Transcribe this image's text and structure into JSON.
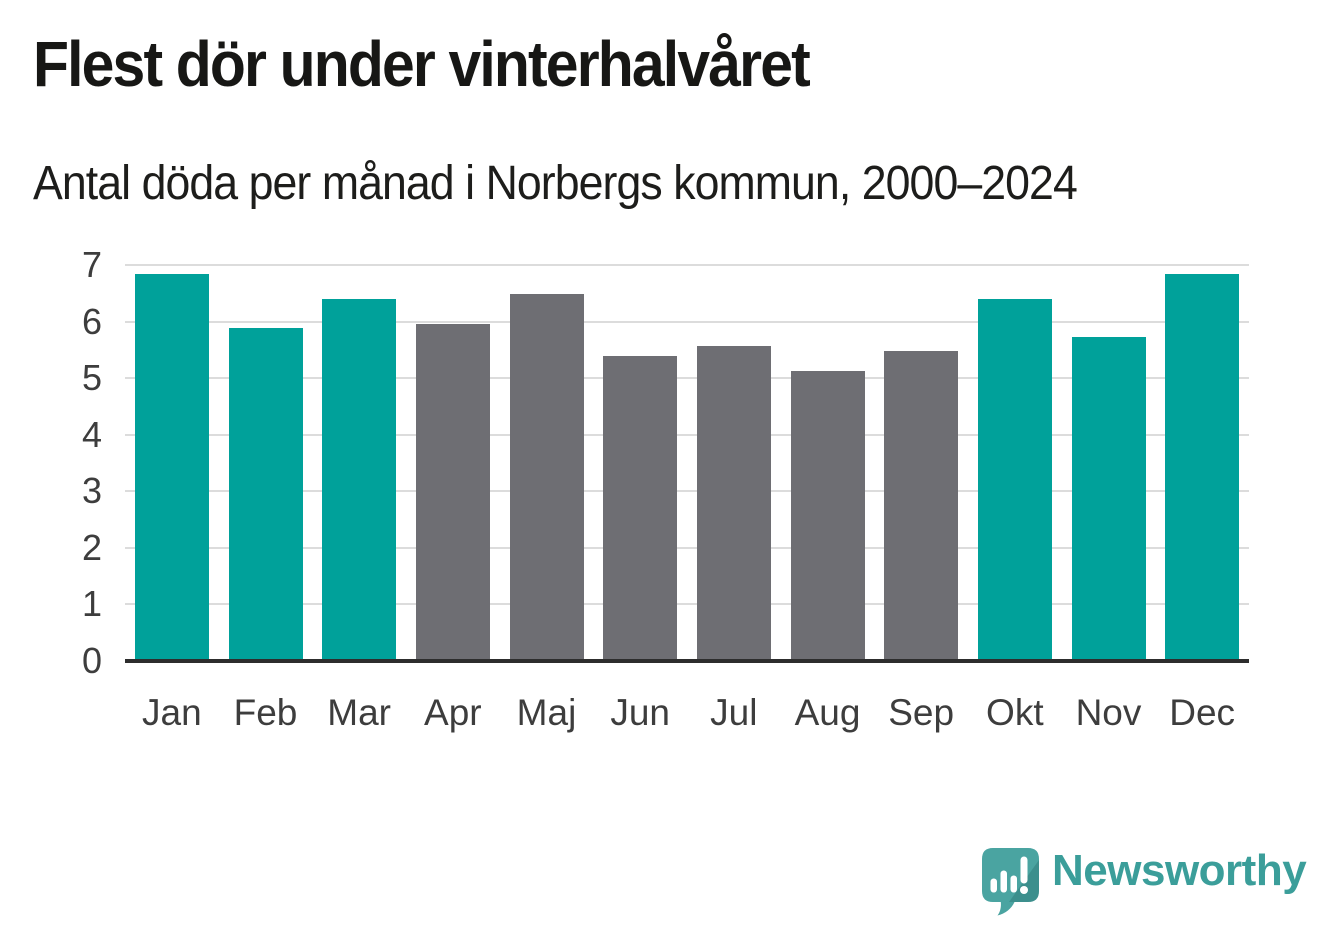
{
  "header": {
    "title": "Flest dör under vinterhalvåret",
    "subtitle": "Antal döda per månad i Norbergs kommun, 2000–2024"
  },
  "chart_data": {
    "type": "bar",
    "title": "Flest dör under vinterhalvåret",
    "subtitle": "Antal döda per månad i Norbergs kommun, 2000–2024",
    "categories": [
      "Jan",
      "Feb",
      "Mar",
      "Apr",
      "Maj",
      "Jun",
      "Jul",
      "Aug",
      "Sep",
      "Okt",
      "Nov",
      "Dec"
    ],
    "values": [
      6.84,
      5.88,
      6.4,
      5.96,
      6.48,
      5.4,
      5.56,
      5.12,
      5.48,
      6.4,
      5.72,
      6.84
    ],
    "bar_colors": [
      "#00a19a",
      "#00a19a",
      "#00a19a",
      "#6e6e73",
      "#6e6e73",
      "#6e6e73",
      "#6e6e73",
      "#6e6e73",
      "#6e6e73",
      "#00a19a",
      "#00a19a",
      "#00a19a"
    ],
    "xlabel": "",
    "ylabel": "",
    "ylim": [
      0,
      7
    ],
    "yticks": [
      0,
      1,
      2,
      3,
      4,
      5,
      6,
      7
    ],
    "grid": true,
    "legend": false
  },
  "colors": {
    "winter_bar_teal": "#00a19a",
    "summer_bar_gray": "#6e6e73",
    "gridline": "#dcdcdc",
    "axis_line": "#2d2d2d",
    "tick_text": "#3d3d3d",
    "title_text": "#171715",
    "brand_teal": "#3b9e9a",
    "logo_bubble_teal": "#4aa4a1",
    "background": "#ffffff"
  },
  "footer": {
    "brand": "Newsworthy"
  }
}
